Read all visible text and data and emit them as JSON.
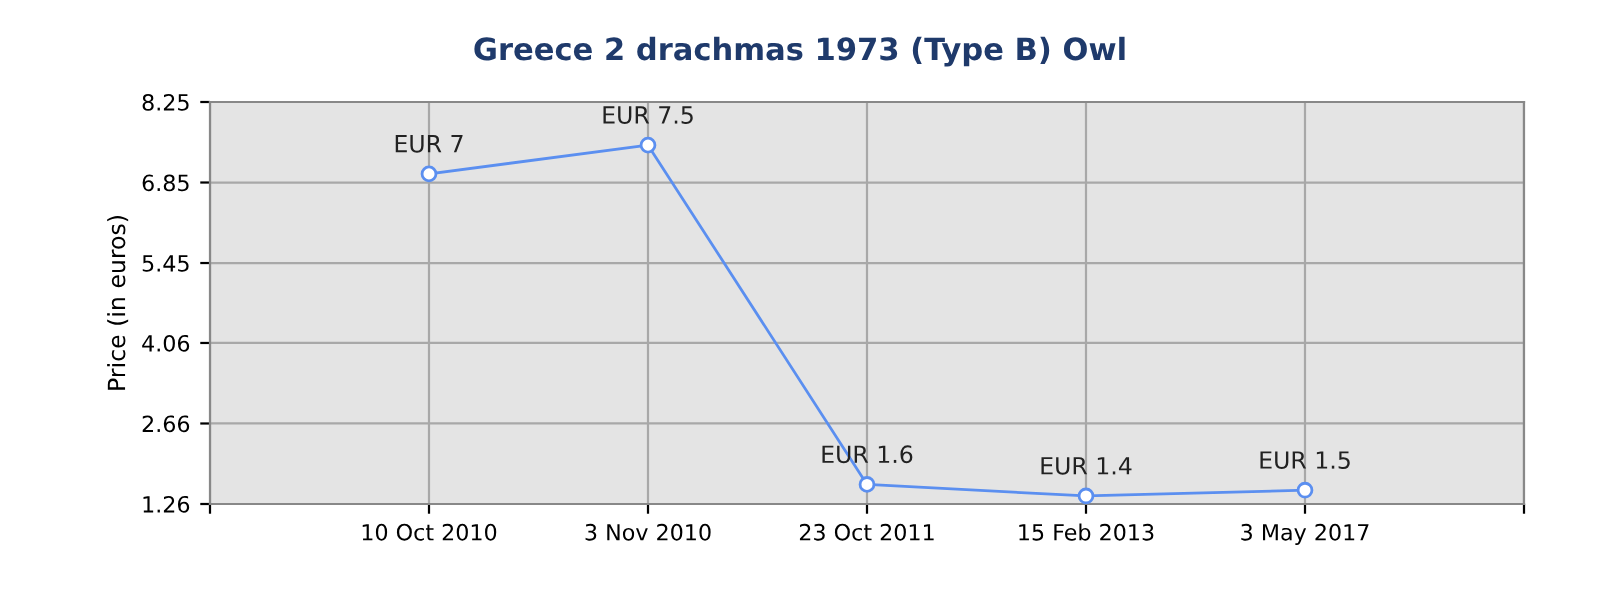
{
  "chart_data": {
    "type": "line",
    "title": "Greece 2 drachmas 1973 (Type B) Owl",
    "ylabel": "Price (in euros)",
    "categories": [
      null,
      "10 Oct 2010",
      "3 Nov 2010",
      "23 Oct 2011",
      "15 Feb 2013",
      "3 May 2017",
      null
    ],
    "series": [
      {
        "color": "#5b8ff0",
        "values": [
          null,
          7,
          7.5,
          1.6,
          1.4,
          1.5,
          null
        ],
        "value_labels": [
          null,
          "EUR 7",
          "EUR 7.5",
          "EUR 1.6",
          "EUR 1.4",
          "EUR 1.5",
          null
        ]
      }
    ],
    "ylim": [
      1.26,
      8.25
    ],
    "yticks": [
      1.26,
      2.66,
      4.06,
      5.45,
      6.85,
      8.25
    ],
    "grid": true,
    "marker": "circle",
    "line_style": "solid"
  }
}
